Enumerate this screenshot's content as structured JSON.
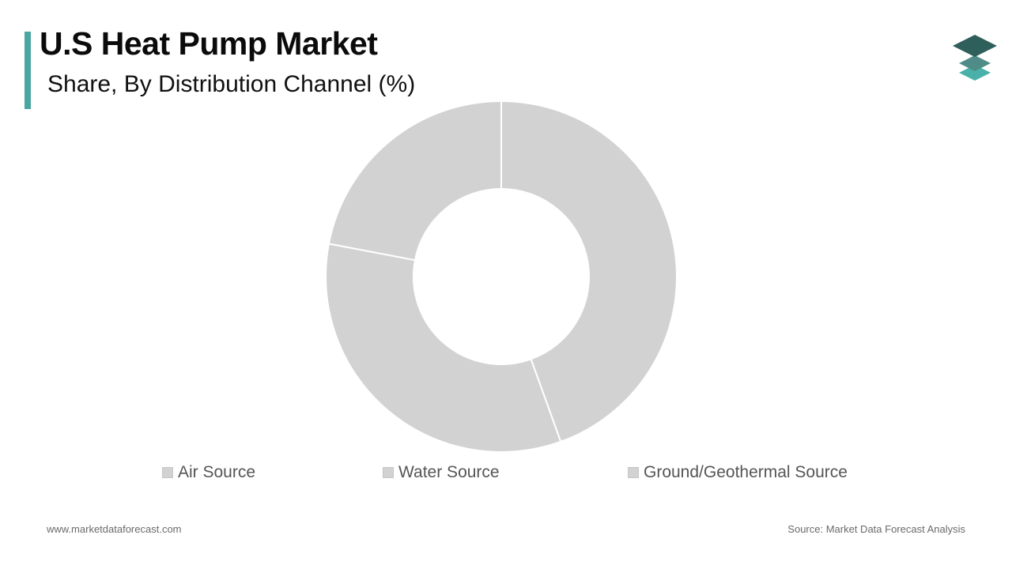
{
  "header": {
    "title": "U.S Heat Pump Market",
    "subtitle": "Share, By Distribution Channel (%)"
  },
  "footer": {
    "website": "www.marketdataforecast.com",
    "source": "Source: Market Data Forecast Analysis"
  },
  "colors": {
    "accent": "#4aa6a0",
    "slice": "#d3d2d3",
    "slice_border": "#ffffff",
    "logo_dark": "#2f5f5a",
    "logo_mid": "#4f8c87",
    "logo_light": "#4ab0aa"
  },
  "icons": {
    "brand_logo": "stacked-layers-icon"
  },
  "chart_data": {
    "type": "pie",
    "variant": "donut",
    "categories": [
      "Air Source",
      "Water Source",
      "Ground/Geothermal Source"
    ],
    "values": [
      44.5,
      33.5,
      22
    ],
    "legend": {
      "placement": "bottom",
      "entries": [
        "Air Source",
        "Water Source",
        "Ground/Geothermal Source"
      ]
    }
  }
}
